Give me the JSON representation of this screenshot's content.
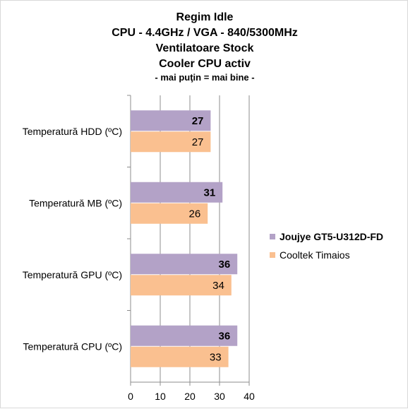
{
  "chart_data": {
    "type": "bar",
    "orientation": "horizontal",
    "title_lines": [
      "Regim Idle",
      "CPU - 4.4GHz / VGA - 840/5300MHz",
      "Ventilatoare Stock",
      "Cooler CPU activ"
    ],
    "subtitle": "- mai puţin = mai bine -",
    "categories": [
      "Temperatură  HDD (ºC)",
      "Temperatură  MB (ºC)",
      "Temperatură  GPU (ºC)",
      "Temperatură  CPU (ºC)"
    ],
    "series": [
      {
        "name": "Joujye GT5-U312D-FD",
        "values": [
          27,
          31,
          36,
          36
        ],
        "color": "#b3a2c7",
        "bold": true
      },
      {
        "name": "Cooltek Timaios",
        "values": [
          27,
          26,
          34,
          33
        ],
        "color": "#fac090",
        "bold": false
      }
    ],
    "xlim": [
      0,
      40
    ],
    "xticks": [
      "0",
      "10",
      "20",
      "30",
      "40"
    ],
    "grid": "vertical",
    "legend_position": "right"
  }
}
